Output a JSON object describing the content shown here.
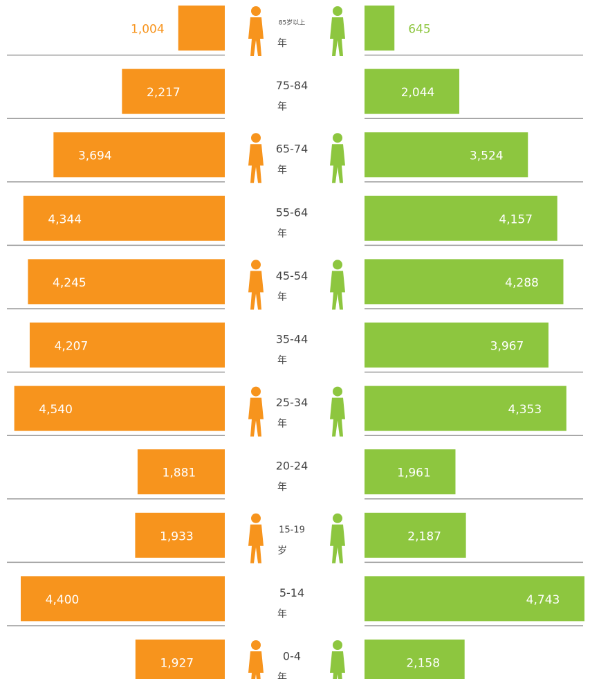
{
  "chart_data": {
    "type": "population-pyramid",
    "categories": [
      "85岁以上",
      "75-84",
      "65-74",
      "55-64",
      "45-54",
      "35-44",
      "25-34",
      "20-24",
      "15-19",
      "5-14",
      "0-4"
    ],
    "category_suffixes": [
      "年",
      "年",
      "年",
      "年",
      "年",
      "年",
      "年",
      "年",
      "岁",
      "年",
      "年"
    ],
    "series": [
      {
        "color": "#f7941d",
        "values": [
          1004,
          2217,
          3694,
          4344,
          4245,
          4207,
          4540,
          1881,
          1933,
          4400,
          1927
        ],
        "value_labels": [
          "1,004",
          "2,217",
          "3,694",
          "4,344",
          "4,245",
          "4,207",
          "4,540",
          "1,881",
          "1,933",
          "4,400",
          "1,927"
        ]
      },
      {
        "color": "#8dc63f",
        "values": [
          645,
          2044,
          3524,
          4157,
          4288,
          3967,
          4353,
          1961,
          2187,
          4743,
          2158
        ],
        "value_labels": [
          "645",
          "2,044",
          "3,524",
          "4,157",
          "4,288",
          "3,967",
          "4,353",
          "1,961",
          "2,187",
          "4,743",
          "2,158"
        ]
      }
    ]
  }
}
